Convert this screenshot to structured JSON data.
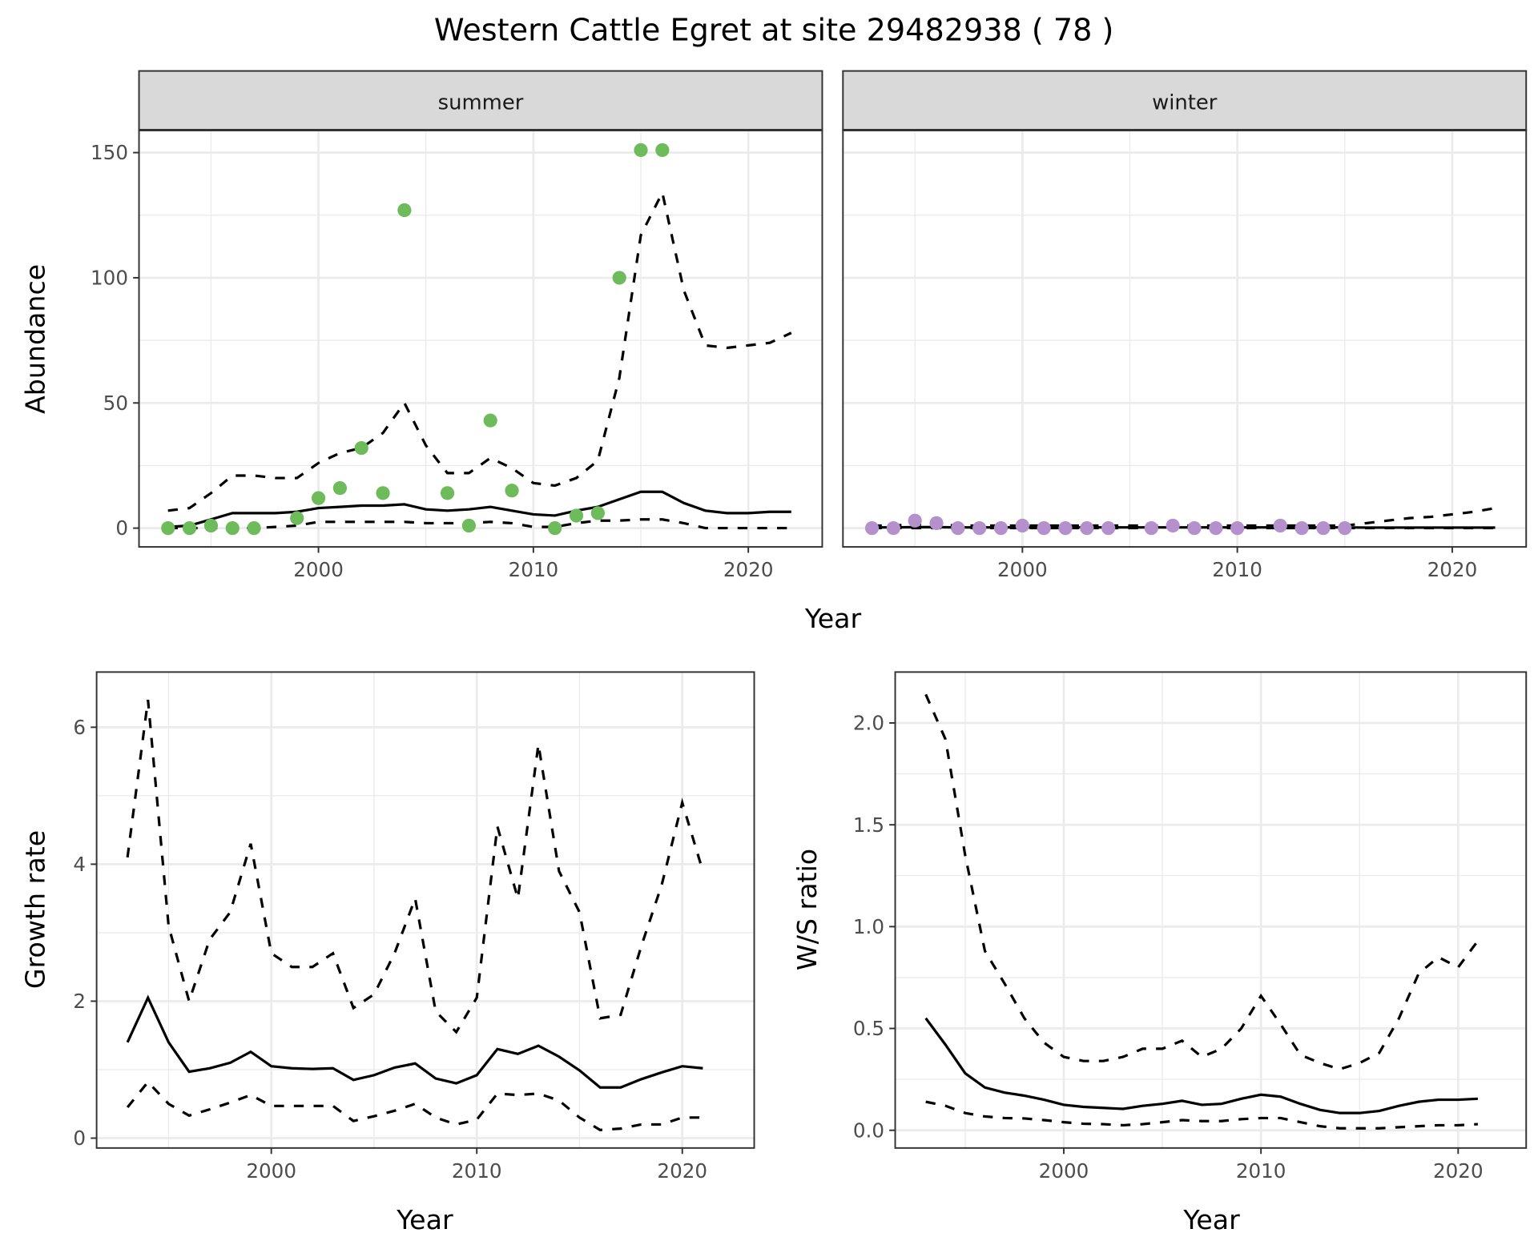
{
  "title": "Western Cattle Egret at site 29482938 ( 78 )",
  "colors": {
    "summer_points": "#6dbb5a",
    "winter_points": "#b491cc",
    "lines": "#000000",
    "grid": "#ebebeb",
    "strip": "#d9d9d9"
  },
  "chart_data": [
    {
      "type": "line+scatter",
      "facet": "summer",
      "xlabel": "Year",
      "ylabel": "Abundance",
      "xlim": [
        1991.65,
        2023.44
      ],
      "ylim": [
        -7.5,
        159
      ],
      "xticks": [
        2000,
        2010,
        2020
      ],
      "yticks": [
        0,
        50,
        100,
        150
      ],
      "grid": true,
      "points": {
        "x": [
          1993,
          1994,
          1995,
          1996,
          1997,
          1999,
          2000,
          2001,
          2002,
          2003,
          2004,
          2006,
          2007,
          2008,
          2009,
          2011,
          2012,
          2013,
          2014,
          2015,
          2016
        ],
        "y": [
          0,
          0,
          1,
          0,
          0,
          4,
          12,
          16,
          32,
          14,
          127,
          14,
          1,
          43,
          15,
          0,
          5,
          6,
          100,
          151,
          151
        ]
      },
      "x": [
        1993,
        1994,
        1995,
        1996,
        1997,
        1998,
        1999,
        2000,
        2001,
        2002,
        2003,
        2004,
        2005,
        2006,
        2007,
        2008,
        2009,
        2010,
        2011,
        2012,
        2013,
        2014,
        2015,
        2016,
        2017,
        2018,
        2019,
        2020,
        2021,
        2022
      ],
      "mean": [
        0.5,
        1,
        3.5,
        6,
        6,
        6,
        6.5,
        8,
        8.5,
        9,
        9,
        9.5,
        7.5,
        7,
        7.5,
        8.5,
        7,
        5.5,
        5,
        7,
        8.5,
        11.5,
        14.5,
        14.5,
        10,
        7,
        6,
        6,
        6.5,
        6.5
      ],
      "upper": [
        7,
        8,
        14,
        21,
        21,
        20,
        20,
        26,
        30,
        32,
        38,
        50,
        33,
        22,
        22,
        28,
        24,
        18,
        17,
        20,
        27,
        60,
        117,
        134,
        95,
        73,
        72,
        73,
        74,
        78
      ],
      "lower": [
        0,
        0,
        0,
        0,
        0,
        0.5,
        1,
        2.5,
        2.5,
        2.5,
        2.5,
        2.5,
        2,
        2,
        2,
        2.5,
        2,
        0.5,
        0.5,
        2,
        3,
        3,
        3.5,
        3.5,
        2,
        0,
        0,
        0,
        0,
        0
      ]
    },
    {
      "type": "line+scatter",
      "facet": "winter",
      "xlabel": "Year",
      "xlim": [
        1991.65,
        2023.44
      ],
      "ylim": [
        -7.5,
        159
      ],
      "xticks": [
        2000,
        2010,
        2020
      ],
      "yticks": [
        0,
        50,
        100,
        150
      ],
      "grid": true,
      "points": {
        "x": [
          1993,
          1994,
          1995,
          1996,
          1997,
          1998,
          1999,
          2000,
          2001,
          2002,
          2003,
          2004,
          2006,
          2007,
          2008,
          2009,
          2010,
          2012,
          2013,
          2014,
          2015
        ],
        "y": [
          0,
          0,
          3,
          2,
          0,
          0,
          0,
          1,
          0,
          0,
          0,
          0,
          0,
          1,
          0,
          0,
          0,
          1,
          0,
          0,
          0
        ]
      },
      "x": [
        1993,
        1994,
        1995,
        1996,
        1997,
        1998,
        1999,
        2000,
        2001,
        2002,
        2003,
        2004,
        2005,
        2006,
        2007,
        2008,
        2009,
        2010,
        2011,
        2012,
        2013,
        2014,
        2015,
        2016,
        2017,
        2018,
        2019,
        2020,
        2021,
        2022
      ],
      "mean": [
        0.3,
        0.3,
        0.4,
        0.4,
        0.3,
        0.3,
        0.3,
        0.3,
        0.3,
        0.3,
        0.3,
        0.3,
        0.3,
        0.3,
        0.3,
        0.3,
        0.3,
        0.3,
        0.3,
        0.3,
        0.3,
        0.3,
        0.3,
        0.2,
        0.2,
        0.2,
        0.2,
        0.2,
        0.2,
        0.2
      ],
      "upper": [
        1,
        1,
        1.5,
        1.5,
        1,
        1,
        1,
        1,
        1,
        1,
        1,
        1,
        1,
        1,
        1,
        1,
        1,
        1,
        1,
        1,
        1,
        1,
        1,
        2,
        3,
        4,
        4.5,
        5.5,
        6.5,
        8
      ],
      "lower": [
        0,
        0,
        0,
        0,
        0,
        0,
        0,
        0,
        0,
        0,
        0,
        0,
        0,
        0,
        0,
        0,
        0,
        0,
        0,
        0,
        0,
        0,
        0,
        0,
        0,
        0,
        0,
        0,
        0,
        0
      ]
    },
    {
      "type": "line",
      "xlabel": "Year",
      "ylabel": "Growth rate",
      "xlim": [
        1991.5,
        2023.5
      ],
      "ylim": [
        -0.144,
        6.806
      ],
      "xticks": [
        2000,
        2010,
        2020
      ],
      "yticks": [
        0,
        2,
        4,
        6
      ],
      "grid": true,
      "x": [
        1993,
        1994,
        1995,
        1996,
        1997,
        1998,
        1999,
        2000,
        2001,
        2002,
        2003,
        2004,
        2005,
        2006,
        2007,
        2008,
        2009,
        2010,
        2011,
        2012,
        2013,
        2014,
        2015,
        2016,
        2017,
        2018,
        2019,
        2020,
        2021
      ],
      "mean": [
        1.4,
        2.05,
        1.4,
        0.97,
        1.02,
        1.1,
        1.26,
        1.05,
        1.02,
        1.01,
        1.02,
        0.85,
        0.92,
        1.03,
        1.09,
        0.87,
        0.8,
        0.92,
        1.3,
        1.23,
        1.35,
        1.19,
        0.99,
        0.74,
        0.74,
        0.86,
        0.96,
        1.05,
        1.02
      ],
      "upper": [
        4.1,
        6.4,
        3.1,
        2.0,
        2.9,
        3.3,
        4.3,
        2.7,
        2.5,
        2.5,
        2.7,
        1.9,
        2.1,
        2.7,
        3.5,
        1.85,
        1.55,
        2.05,
        4.55,
        3.5,
        5.75,
        3.9,
        3.3,
        1.75,
        1.8,
        2.8,
        3.7,
        4.9,
        3.9
      ],
      "lower": [
        0.45,
        0.82,
        0.5,
        0.33,
        0.42,
        0.52,
        0.63,
        0.47,
        0.47,
        0.47,
        0.47,
        0.25,
        0.32,
        0.4,
        0.5,
        0.3,
        0.2,
        0.27,
        0.65,
        0.63,
        0.65,
        0.55,
        0.3,
        0.12,
        0.14,
        0.2,
        0.2,
        0.3,
        0.3
      ]
    },
    {
      "type": "line",
      "xlabel": "Year",
      "ylabel": "W/S ratio",
      "xlim": [
        1991.45,
        2023.45
      ],
      "ylim": [
        -0.087,
        2.25
      ],
      "xticks": [
        2000,
        2010,
        2020
      ],
      "yticks": [
        0.0,
        0.5,
        1.0,
        1.5,
        2.0
      ],
      "ytick_labels": [
        "0.0",
        "0.5",
        "1.0",
        "1.5",
        "2.0"
      ],
      "grid": true,
      "x": [
        1993,
        1994,
        1995,
        1996,
        1997,
        1998,
        1999,
        2000,
        2001,
        2002,
        2003,
        2004,
        2005,
        2006,
        2007,
        2008,
        2009,
        2010,
        2011,
        2012,
        2013,
        2014,
        2015,
        2016,
        2017,
        2018,
        2019,
        2020,
        2021
      ],
      "mean": [
        0.55,
        0.42,
        0.28,
        0.21,
        0.185,
        0.17,
        0.15,
        0.125,
        0.115,
        0.11,
        0.105,
        0.12,
        0.13,
        0.145,
        0.125,
        0.13,
        0.155,
        0.175,
        0.165,
        0.13,
        0.1,
        0.085,
        0.085,
        0.095,
        0.12,
        0.14,
        0.15,
        0.15,
        0.155
      ],
      "upper": [
        2.14,
        1.92,
        1.35,
        0.88,
        0.72,
        0.55,
        0.43,
        0.36,
        0.34,
        0.34,
        0.36,
        0.4,
        0.4,
        0.44,
        0.36,
        0.4,
        0.5,
        0.66,
        0.52,
        0.37,
        0.33,
        0.3,
        0.33,
        0.38,
        0.55,
        0.77,
        0.85,
        0.8,
        0.93
      ],
      "lower": [
        0.14,
        0.12,
        0.085,
        0.068,
        0.06,
        0.058,
        0.05,
        0.04,
        0.032,
        0.03,
        0.025,
        0.03,
        0.04,
        0.05,
        0.045,
        0.045,
        0.055,
        0.06,
        0.06,
        0.04,
        0.02,
        0.01,
        0.01,
        0.01,
        0.015,
        0.02,
        0.025,
        0.025,
        0.03
      ]
    }
  ]
}
